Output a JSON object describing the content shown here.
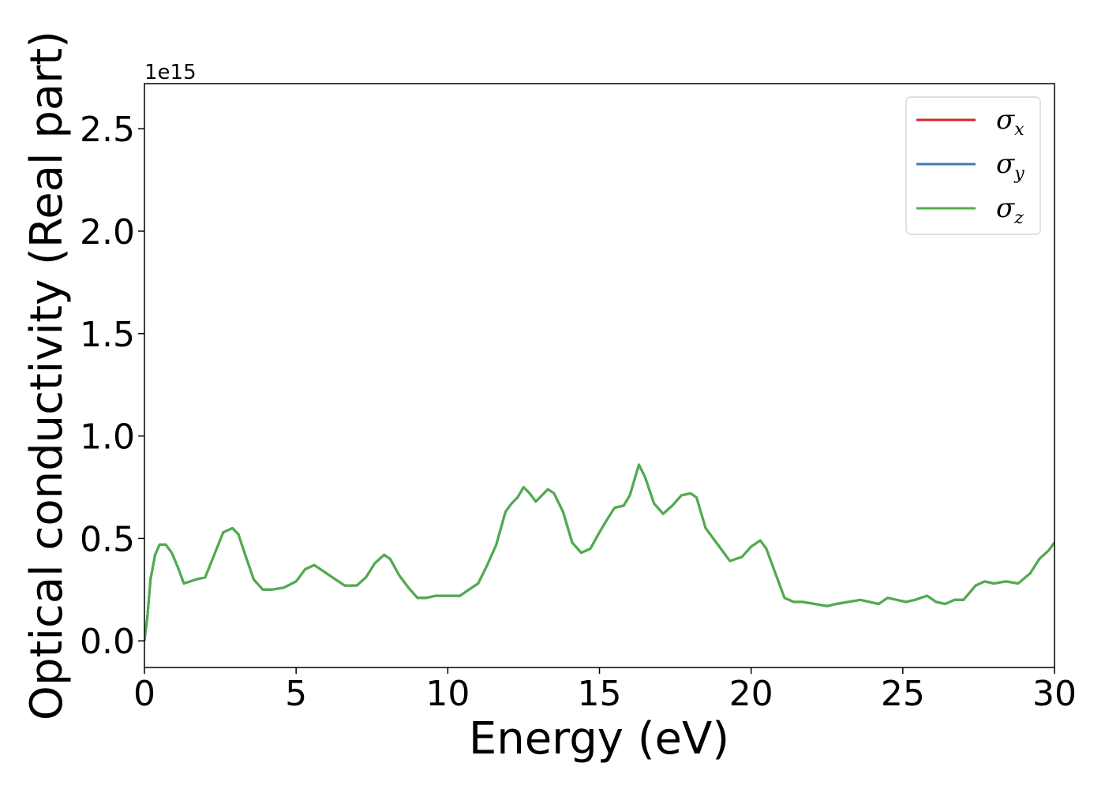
{
  "chart_data": {
    "type": "line",
    "xlabel": "Energy (eV)",
    "ylabel": "Optical conductivity (Real part)",
    "y_offset_label": "1e15",
    "xlim": [
      0,
      30
    ],
    "ylim": [
      -0.13,
      2.72
    ],
    "x_ticks": [
      0,
      5,
      10,
      15,
      20,
      25,
      30
    ],
    "x_tick_labels": [
      "0",
      "5",
      "10",
      "15",
      "20",
      "25",
      "30"
    ],
    "y_ticks": [
      0.0,
      0.5,
      1.0,
      1.5,
      2.0,
      2.5
    ],
    "y_tick_labels": [
      "0.0",
      "0.5",
      "1.0",
      "1.5",
      "2.0",
      "2.5"
    ],
    "grid": false,
    "legend_position": "top-right",
    "x": [
      0,
      0.1,
      0.2,
      0.35,
      0.5,
      0.7,
      0.9,
      1.1,
      1.3,
      1.5,
      1.7,
      2.0,
      2.3,
      2.6,
      2.9,
      3.1,
      3.3,
      3.6,
      3.9,
      4.2,
      4.6,
      5.0,
      5.3,
      5.6,
      5.8,
      6.0,
      6.3,
      6.6,
      7.0,
      7.3,
      7.6,
      7.9,
      8.1,
      8.4,
      8.7,
      9.0,
      9.3,
      9.6,
      10.0,
      10.4,
      10.7,
      11.0,
      11.3,
      11.6,
      11.9,
      12.1,
      12.3,
      12.5,
      12.7,
      12.9,
      13.1,
      13.3,
      13.5,
      13.8,
      14.1,
      14.4,
      14.7,
      15.0,
      15.2,
      15.5,
      15.8,
      16.0,
      16.3,
      16.5,
      16.8,
      17.1,
      17.4,
      17.7,
      18.0,
      18.2,
      18.5,
      18.9,
      19.3,
      19.7,
      20.0,
      20.3,
      20.5,
      20.8,
      21.1,
      21.4,
      21.7,
      22.1,
      22.5,
      22.8,
      23.2,
      23.6,
      23.9,
      24.2,
      24.5,
      24.8,
      25.1,
      25.4,
      25.8,
      26.1,
      26.4,
      26.7,
      27.0,
      27.4,
      27.7,
      28.0,
      28.4,
      28.8,
      29.2,
      29.5,
      29.8,
      30.0
    ],
    "y_values_1e15": [
      0.0,
      0.12,
      0.3,
      0.42,
      0.47,
      0.47,
      0.43,
      0.36,
      0.28,
      0.29,
      0.3,
      0.31,
      0.42,
      0.53,
      0.55,
      0.52,
      0.43,
      0.3,
      0.25,
      0.25,
      0.26,
      0.29,
      0.35,
      0.37,
      0.35,
      0.33,
      0.3,
      0.27,
      0.27,
      0.31,
      0.38,
      0.42,
      0.4,
      0.32,
      0.26,
      0.21,
      0.21,
      0.22,
      0.22,
      0.22,
      0.25,
      0.28,
      0.37,
      0.47,
      0.63,
      0.67,
      0.7,
      0.75,
      0.72,
      0.68,
      0.71,
      0.74,
      0.72,
      0.63,
      0.48,
      0.43,
      0.45,
      0.53,
      0.58,
      0.65,
      0.66,
      0.71,
      0.86,
      0.8,
      0.67,
      0.62,
      0.66,
      0.71,
      0.72,
      0.7,
      0.55,
      0.47,
      0.39,
      0.41,
      0.46,
      0.49,
      0.45,
      0.33,
      0.21,
      0.19,
      0.19,
      0.18,
      0.17,
      0.18,
      0.19,
      0.2,
      0.19,
      0.18,
      0.21,
      0.2,
      0.19,
      0.2,
      0.22,
      0.19,
      0.18,
      0.2,
      0.2,
      0.27,
      0.29,
      0.28,
      0.29,
      0.28,
      0.33,
      0.4,
      0.44,
      0.48
    ],
    "series": [
      {
        "name": "σx",
        "base": "σ",
        "sub": "x",
        "color": "#d62728"
      },
      {
        "name": "σy",
        "base": "σ",
        "sub": "y",
        "color": "#3a7bb8"
      },
      {
        "name": "σz",
        "base": "σ",
        "sub": "z",
        "color": "#4daf4a"
      }
    ]
  }
}
